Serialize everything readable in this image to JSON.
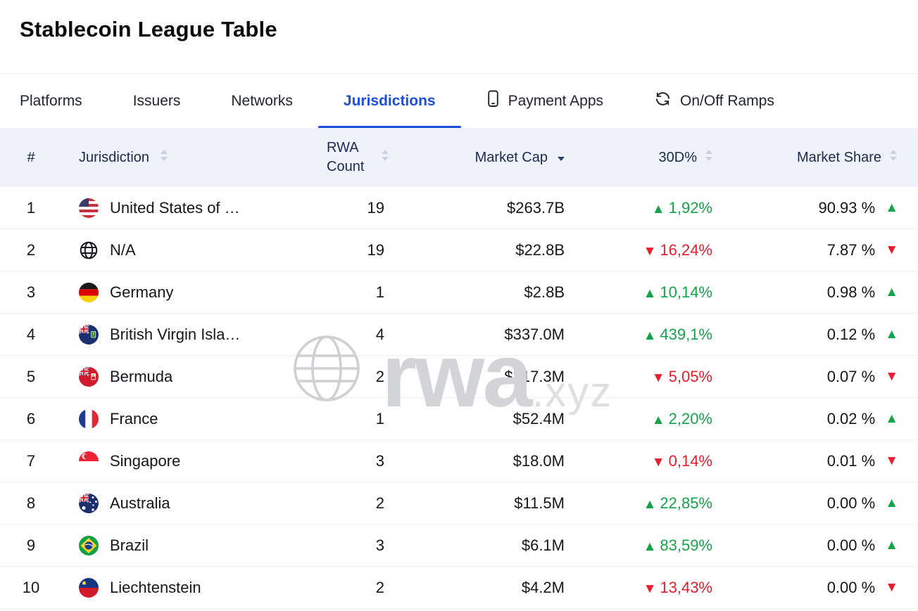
{
  "page": {
    "title": "Stablecoin League Table"
  },
  "colors": {
    "accent": "#1d4ed8",
    "positive": "#16a34a",
    "negative": "#e51e2e",
    "header_bg": "#edf2fb"
  },
  "tabs": [
    {
      "label": "Platforms",
      "active": false
    },
    {
      "label": "Issuers",
      "active": false
    },
    {
      "label": "Networks",
      "active": false
    },
    {
      "label": "Jurisdictions",
      "active": true
    },
    {
      "label": "Payment Apps",
      "icon": "phone-icon",
      "active": false
    },
    {
      "label": "On/Off Ramps",
      "icon": "refresh-icon",
      "active": false
    }
  ],
  "table": {
    "columns": [
      {
        "key": "rank",
        "label": "#",
        "sortable": false,
        "sort": "none"
      },
      {
        "key": "jurisdiction",
        "label": "Jurisdiction",
        "sortable": true,
        "sort": "none"
      },
      {
        "key": "rwa_count",
        "label": "RWA Count",
        "sortable": true,
        "sort": "none"
      },
      {
        "key": "market_cap",
        "label": "Market Cap",
        "sortable": true,
        "sort": "desc"
      },
      {
        "key": "change_30d",
        "label": "30D%",
        "sortable": true,
        "sort": "none"
      },
      {
        "key": "market_share",
        "label": "Market Share",
        "sortable": true,
        "sort": "none"
      }
    ],
    "rows": [
      {
        "rank": "1",
        "name": "United States of …",
        "flag": "us",
        "rwa_count": "19",
        "market_cap": "$263.7B",
        "change_30d": "1,92%",
        "change_dir": "up",
        "market_share": "90.93 %",
        "share_dir": "up"
      },
      {
        "rank": "2",
        "name": "N/A",
        "flag": "globe",
        "rwa_count": "19",
        "market_cap": "$22.8B",
        "change_30d": "16,24%",
        "change_dir": "down",
        "market_share": "7.87 %",
        "share_dir": "down"
      },
      {
        "rank": "3",
        "name": "Germany",
        "flag": "de",
        "rwa_count": "1",
        "market_cap": "$2.8B",
        "change_30d": "10,14%",
        "change_dir": "up",
        "market_share": "0.98 %",
        "share_dir": "up"
      },
      {
        "rank": "4",
        "name": "British Virgin Isla…",
        "flag": "vg",
        "rwa_count": "4",
        "market_cap": "$337.0M",
        "change_30d": "439,1%",
        "change_dir": "up",
        "market_share": "0.12 %",
        "share_dir": "up"
      },
      {
        "rank": "5",
        "name": "Bermuda",
        "flag": "bm",
        "rwa_count": "2",
        "market_cap": "$217.3M",
        "change_30d": "5,05%",
        "change_dir": "down",
        "market_share": "0.07 %",
        "share_dir": "down"
      },
      {
        "rank": "6",
        "name": "France",
        "flag": "fr",
        "rwa_count": "1",
        "market_cap": "$52.4M",
        "change_30d": "2,20%",
        "change_dir": "up",
        "market_share": "0.02 %",
        "share_dir": "up"
      },
      {
        "rank": "7",
        "name": "Singapore",
        "flag": "sg",
        "rwa_count": "3",
        "market_cap": "$18.0M",
        "change_30d": "0,14%",
        "change_dir": "down",
        "market_share": "0.01 %",
        "share_dir": "down"
      },
      {
        "rank": "8",
        "name": "Australia",
        "flag": "au",
        "rwa_count": "2",
        "market_cap": "$11.5M",
        "change_30d": "22,85%",
        "change_dir": "up",
        "market_share": "0.00 %",
        "share_dir": "up"
      },
      {
        "rank": "9",
        "name": "Brazil",
        "flag": "br",
        "rwa_count": "3",
        "market_cap": "$6.1M",
        "change_30d": "83,59%",
        "change_dir": "up",
        "market_share": "0.00 %",
        "share_dir": "up"
      },
      {
        "rank": "10",
        "name": "Liechtenstein",
        "flag": "li",
        "rwa_count": "2",
        "market_cap": "$4.2M",
        "change_30d": "13,43%",
        "change_dir": "down",
        "market_share": "0.00 %",
        "share_dir": "down"
      }
    ]
  },
  "watermark": {
    "brand": "rwa",
    "suffix": ".xyz"
  }
}
